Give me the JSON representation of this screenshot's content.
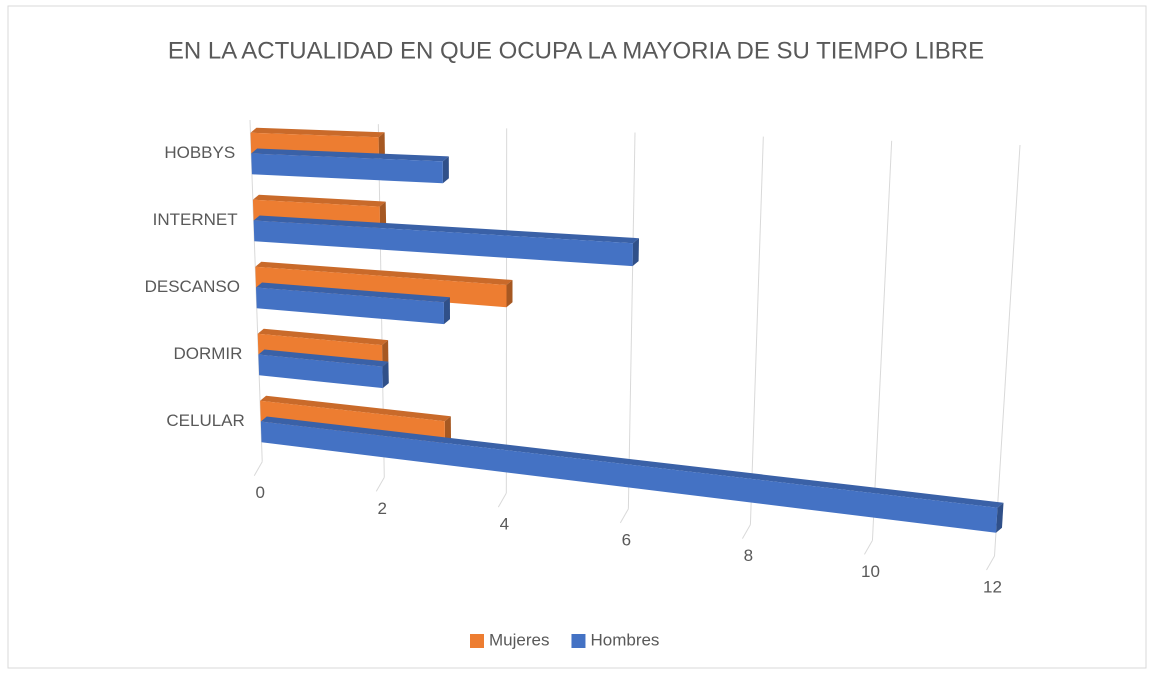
{
  "chart_data": {
    "type": "bar3d",
    "title": "EN LA ACTUALIDAD EN QUE OCUPA LA MAYORIA DE SU TIEMPO LIBRE",
    "categories": [
      "CELULAR",
      "DORMIR",
      "DESCANSO",
      "INTERNET",
      "HOBBYS"
    ],
    "series": [
      {
        "name": "Mujeres",
        "color": "#ed7d31",
        "values": [
          3,
          2,
          4,
          2,
          2
        ]
      },
      {
        "name": "Hombres",
        "color": "#4472c4",
        "values": [
          12,
          2,
          3,
          6,
          3
        ]
      }
    ],
    "xlim": [
      0,
      12
    ],
    "xticks": [
      0,
      2,
      4,
      6,
      8,
      10,
      12
    ],
    "grid": true,
    "legend": "bottom"
  }
}
